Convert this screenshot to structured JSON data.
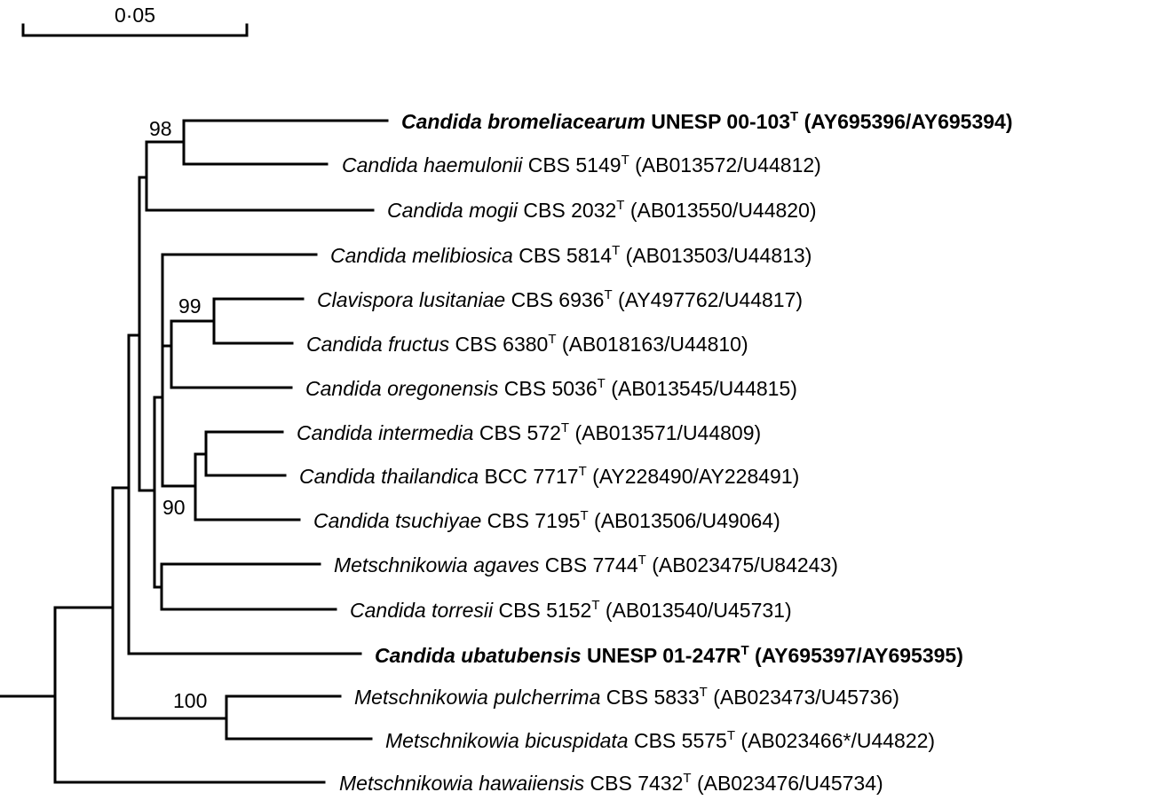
{
  "scale_bar": {
    "label": "0·05"
  },
  "taxa": [
    {
      "id": "bromeliacearum",
      "name": "Candida bromeliacearum",
      "strain": "UNESP 00-103",
      "sup": "T",
      "accession": "(AY695396/AY695394)",
      "bold": true
    },
    {
      "id": "haemulonii",
      "name": "Candida haemulonii",
      "strain": "CBS 5149",
      "sup": "T",
      "accession": "(AB013572/U44812)",
      "bold": false
    },
    {
      "id": "mogii",
      "name": "Candida mogii",
      "strain": "CBS 2032",
      "sup": "T",
      "accession": "(AB013550/U44820)",
      "bold": false
    },
    {
      "id": "melibiosica",
      "name": "Candida melibiosica",
      "strain": "CBS 5814",
      "sup": "T",
      "accession": "(AB013503/U44813)",
      "bold": false
    },
    {
      "id": "lusitaniae",
      "name": "Clavispora lusitaniae",
      "strain": "CBS 6936",
      "sup": "T",
      "accession": "(AY497762/U44817)",
      "bold": false
    },
    {
      "id": "fructus",
      "name": "Candida fructus",
      "strain": "CBS 6380",
      "sup": "T",
      "accession": "(AB018163/U44810)",
      "bold": false
    },
    {
      "id": "oregonensis",
      "name": "Candida oregonensis",
      "strain": "CBS 5036",
      "sup": "T",
      "accession": "(AB013545/U44815)",
      "bold": false
    },
    {
      "id": "intermedia",
      "name": "Candida intermedia",
      "strain": "CBS 572",
      "sup": "T",
      "accession": "(AB013571/U44809)",
      "bold": false
    },
    {
      "id": "thailandica",
      "name": "Candida thailandica",
      "strain": "BCC 7717",
      "sup": "T",
      "accession": "(AY228490/AY228491)",
      "bold": false
    },
    {
      "id": "tsuchiyae",
      "name": "Candida tsuchiyae",
      "strain": "CBS 7195",
      "sup": "T",
      "accession": "(AB013506/U49064)",
      "bold": false
    },
    {
      "id": "agaves",
      "name": "Metschnikowia agaves",
      "strain": "CBS 7744",
      "sup": "T",
      "accession": "(AB023475/U84243)",
      "bold": false
    },
    {
      "id": "torresii",
      "name": "Candida torresii",
      "strain": "CBS 5152",
      "sup": "T",
      "accession": "(AB013540/U45731)",
      "bold": false
    },
    {
      "id": "ubatubensis",
      "name": "Candida ubatubensis",
      "strain": "UNESP 01-247R",
      "sup": "T",
      "accession": "(AY695397/AY695395)",
      "bold": true
    },
    {
      "id": "pulcherrima",
      "name": "Metschnikowia pulcherrima",
      "strain": "CBS 5833",
      "sup": "T",
      "accession": "(AB023473/U45736)",
      "bold": false
    },
    {
      "id": "bicuspidata",
      "name": "Metschnikowia bicuspidata",
      "strain": "CBS 5575",
      "sup": "T",
      "accession": "(AB023466*/U44822)",
      "bold": false
    },
    {
      "id": "hawaiiensis",
      "name": "Metschnikowia hawaiiensis",
      "strain": "CBS 7432",
      "sup": "T",
      "accession": "(AB023476/U45734)",
      "bold": false
    }
  ],
  "bootstrap": [
    {
      "id": "b98",
      "value": "98"
    },
    {
      "id": "b99",
      "value": "99"
    },
    {
      "id": "b90",
      "value": "90"
    },
    {
      "id": "b100",
      "value": "100"
    }
  ]
}
